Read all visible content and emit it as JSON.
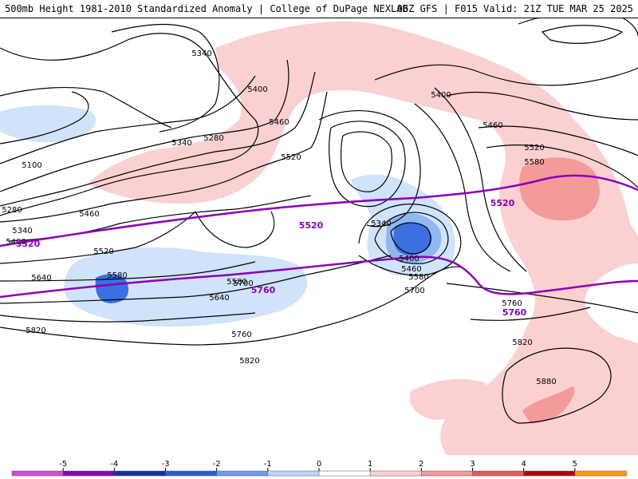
{
  "header": {
    "left_title": "500mb Height 1981-2010 Standardized Anomaly | College of DuPage NEXLAB",
    "right_title": "06Z GFS | F015 Valid: 21Z TUE MAR 25 2025"
  },
  "colors": {
    "ref_contour": "#8a00b8",
    "height_contour": "#000000",
    "anom_neg_1": "#cfe3fa",
    "anom_neg_2": "#90b8f0",
    "anom_neg_3": "#3c6fe0",
    "anom_pos_1": "#fbd0d0",
    "anom_pos_2": "#f39a9a",
    "anom_pos_3": "#e85a5a"
  },
  "contour_labels": [
    "5340",
    "5400",
    "5280",
    "5340",
    "5100",
    "5460",
    "5520",
    "5280",
    "5340",
    "5400",
    "5460",
    "5520",
    "5640",
    "5580",
    "5700",
    "5580",
    "5640",
    "5760",
    "5820",
    "5820",
    "5400",
    "5460",
    "5580",
    "5700",
    "5340",
    "5460",
    "5520",
    "5580",
    "5760",
    "5820",
    "5880",
    "5400"
  ],
  "ref_labels": [
    "5520",
    "5520",
    "5520",
    "5760",
    "5760"
  ],
  "colorbar": {
    "ticks": [
      "-5",
      "-4",
      "-3",
      "-2",
      "-1",
      "0",
      "1",
      "2",
      "3",
      "4",
      "5"
    ],
    "colors": [
      "#d050d0",
      "#8a00b8",
      "#1530a0",
      "#2a5ad8",
      "#6f9ae8",
      "#bcd6f5",
      "#ffffff",
      "#fbd0d0",
      "#f19b9b",
      "#e85a5a",
      "#b80000",
      "#ff9900"
    ]
  }
}
